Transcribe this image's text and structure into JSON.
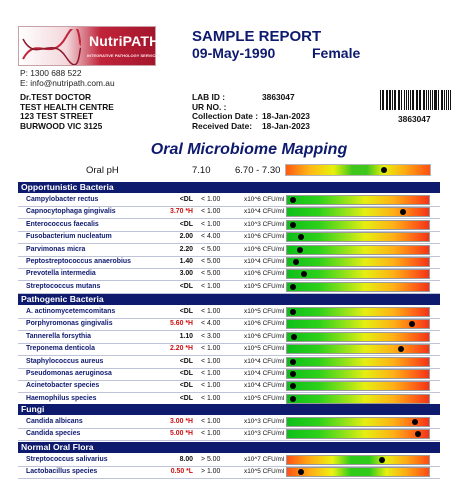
{
  "logo": {
    "brand": "NutriPATH",
    "tagline": "INTEGRATIVE PATHOLOGY SERVICES"
  },
  "contact": {
    "phone": "P: 1300 688 522",
    "email": "E: info@nutripath.com.au"
  },
  "report": {
    "title": "SAMPLE REPORT",
    "date": "09-May-1990",
    "sex": "Female"
  },
  "address": [
    "Dr.TEST DOCTOR",
    "TEST HEALTH CENTRE",
    "123 TEST STREET",
    "BURWOOD VIC 3125"
  ],
  "patient_info": [
    {
      "label": "LAB ID :",
      "value": "3863047"
    },
    {
      "label": "UR NO. :",
      "value": ""
    },
    {
      "label": "Collection Date :",
      "value": "18-Jan-2023"
    },
    {
      "label": "Received Date:",
      "value": "18-Jan-2023"
    }
  ],
  "barcode_number": "3863047",
  "main_title": "Oral Microbiome Mapping",
  "oral_ph": {
    "label": "Oral pH",
    "value": "7.10",
    "reference": "6.70 - 7.30",
    "marker_fraction": 0.68
  },
  "colors": {
    "navy": "#0e1a6e",
    "high": "#cc1111"
  },
  "sections": [
    {
      "title": "Opportunistic Bacteria",
      "bar_type": "A",
      "rows": [
        {
          "name": "Campylobacter rectus",
          "result": "<DL",
          "high": false,
          "ref": "< 1.00",
          "unit": "x10^6 CFU/ml",
          "marker": 0.04
        },
        {
          "name": "Capnocytophaga gingivalis",
          "result": "3.70 *H",
          "high": true,
          "ref": "< 1.00",
          "unit": "x10^4 CFU/ml",
          "marker": 0.82
        },
        {
          "name": "Enterococcus  faecalis",
          "result": "<DL",
          "high": false,
          "ref": "< 1.00",
          "unit": "x10^3 CFU/ml",
          "marker": 0.04
        },
        {
          "name": "Fusobacterium nucleatum",
          "result": "2.00",
          "high": false,
          "ref": "< 4.00",
          "unit": "x10^6 CFU/ml",
          "marker": 0.1
        },
        {
          "name": "Parvimonas micra",
          "result": "2.20",
          "high": false,
          "ref": "< 5.00",
          "unit": "x10^6 CFU/ml",
          "marker": 0.09
        },
        {
          "name": "Peptostreptococcus anaerobius",
          "result": "1.40",
          "high": false,
          "ref": "< 5.00",
          "unit": "x10^4 CFU/ml",
          "marker": 0.06
        },
        {
          "name": "Prevotella intermedia",
          "result": "3.00",
          "high": false,
          "ref": "< 5.00",
          "unit": "x10^6 CFU/ml",
          "marker": 0.12
        },
        {
          "name": "Streptococcus  mutans",
          "result": "<DL",
          "high": false,
          "ref": "< 1.00",
          "unit": "x10^5 CFU/ml",
          "marker": 0.04
        }
      ]
    },
    {
      "title": "Pathogenic Bacteria",
      "bar_type": "A",
      "rows": [
        {
          "name": "A. actinomycetemcomitans",
          "result": "<DL",
          "high": false,
          "ref": "< 1.00",
          "unit": "x10^5 CFU/ml",
          "marker": 0.04
        },
        {
          "name": "Porphyromonas gingivalis",
          "result": "5.60 *H",
          "high": true,
          "ref": "< 4.00",
          "unit": "x10^6 CFU/ml",
          "marker": 0.88
        },
        {
          "name": "Tannerella forsythia",
          "result": "1.10",
          "high": false,
          "ref": "< 3.00",
          "unit": "x10^6 CFU/ml",
          "marker": 0.05
        },
        {
          "name": "Treponema denticola",
          "result": "2.20 *H",
          "high": true,
          "ref": "< 1.00",
          "unit": "x10^5 CFU/ml",
          "marker": 0.8
        },
        {
          "name": "Staphylococcus  aureus",
          "result": "<DL",
          "high": false,
          "ref": "< 1.00",
          "unit": "x10^4 CFU/ml",
          "marker": 0.04
        },
        {
          "name": "Pseudomonas  aeruginosa",
          "result": "<DL",
          "high": false,
          "ref": "< 1.00",
          "unit": "x10^4 CFU/ml",
          "marker": 0.04
        },
        {
          "name": "Acinetobacter species",
          "result": "<DL",
          "high": false,
          "ref": "< 1.00",
          "unit": "x10^4 CFU/ml",
          "marker": 0.04
        },
        {
          "name": "Haemophilus species",
          "result": "<DL",
          "high": false,
          "ref": "< 1.00",
          "unit": "x10^5 CFU/ml",
          "marker": 0.04
        }
      ]
    },
    {
      "title": "Fungi",
      "bar_type": "A",
      "rows": [
        {
          "name": "Candida  albicans",
          "result": "3.00 *H",
          "high": true,
          "ref": "< 1.00",
          "unit": "x10^3 CFU/ml",
          "marker": 0.9
        },
        {
          "name": "Candida  species",
          "result": "5.00 *H",
          "high": true,
          "ref": "< 1.00",
          "unit": "x10^3 CFU/ml",
          "marker": 0.92
        }
      ]
    },
    {
      "title": "Normal Oral Flora",
      "bar_type": "B",
      "rows": [
        {
          "name": "Streptococcus salivarius",
          "result": "8.00",
          "high": false,
          "ref": "> 5.00",
          "unit": "x10^7 CFU/ml",
          "marker": 0.67
        },
        {
          "name": "Lactobacillus  species",
          "result": "0.50 *L",
          "high": true,
          "ref": "> 1.00",
          "unit": "x10^5 CFU/ml",
          "marker": 0.1
        }
      ]
    }
  ]
}
